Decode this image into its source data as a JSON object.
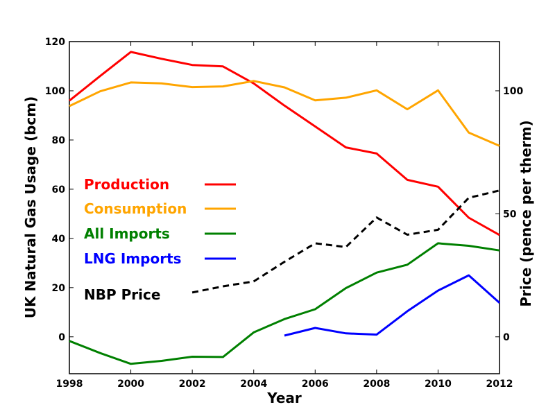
{
  "chart_data": {
    "type": "line",
    "title": "",
    "xlabel": "Year",
    "ylabel": "UK Natural Gas Usage (bcm)",
    "y2label": "Price (pence per therm)",
    "xlim": [
      1998,
      2012
    ],
    "ylim": [
      -15,
      120
    ],
    "y2lim": [
      -15,
      120
    ],
    "x_ticks": [
      1998,
      2000,
      2002,
      2004,
      2006,
      2008,
      2010,
      2012
    ],
    "y_ticks": [
      0,
      20,
      40,
      60,
      80,
      100,
      120
    ],
    "y2_ticks": [
      0,
      50,
      100
    ],
    "grid": false,
    "legend_position": "center-left",
    "series": [
      {
        "name": "Production",
        "color": "#ff0000",
        "dash": "solid",
        "axis": "left",
        "x": [
          1998,
          1999,
          2000,
          2001,
          2002,
          2003,
          2004,
          2005,
          2006,
          2007,
          2008,
          2009,
          2010,
          2011,
          2012
        ],
        "values": [
          96,
          106,
          115.8,
          113,
          110.5,
          109.9,
          103,
          94,
          85.5,
          77,
          74.5,
          63.8,
          61,
          48.4,
          41.4
        ]
      },
      {
        "name": "Consumption",
        "color": "#ffa500",
        "dash": "solid",
        "axis": "left",
        "x": [
          1998,
          1999,
          2000,
          2001,
          2002,
          2003,
          2004,
          2005,
          2006,
          2007,
          2008,
          2009,
          2010,
          2011,
          2012
        ],
        "values": [
          93.8,
          99.8,
          103.4,
          103,
          101.5,
          101.8,
          104,
          101.4,
          96.1,
          97.2,
          100.2,
          92.5,
          100.2,
          83,
          77.6
        ]
      },
      {
        "name": "All Imports",
        "color": "#008000",
        "dash": "solid",
        "axis": "left",
        "x": [
          1998,
          1999,
          2000,
          2001,
          2002,
          2003,
          2004,
          2005,
          2006,
          2007,
          2008,
          2009,
          2010,
          2011,
          2012
        ],
        "values": [
          -1.7,
          -6.6,
          -11,
          -9.8,
          -8.1,
          -8.2,
          1.8,
          7.2,
          11.2,
          19.8,
          26.1,
          29.3,
          38,
          37,
          35.1
        ]
      },
      {
        "name": "LNG Imports",
        "color": "#0000ff",
        "dash": "solid",
        "axis": "left",
        "x": [
          2005,
          2006,
          2007,
          2008,
          2009,
          2010,
          2011,
          2012
        ],
        "values": [
          0.5,
          3.6,
          1.4,
          0.9,
          10.4,
          18.8,
          25,
          13.8
        ]
      },
      {
        "name": "NBP Price",
        "color": "#000000",
        "dash": "dashed",
        "axis": "right",
        "x": [
          2002,
          2003,
          2004,
          2005,
          2006,
          2007,
          2008,
          2009,
          2010,
          2011,
          2012
        ],
        "values": [
          18,
          20.5,
          22.5,
          30.5,
          38,
          36.5,
          48.5,
          41.5,
          43.5,
          56.5,
          59.5
        ]
      }
    ]
  }
}
